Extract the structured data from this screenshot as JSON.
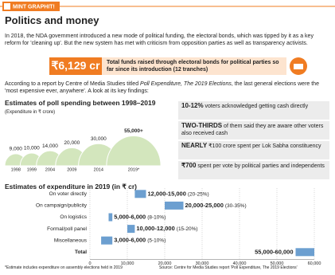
{
  "header": {
    "brand": "MINT GRAPHIT!"
  },
  "title": "Politics and money",
  "intro": "In 2018, the NDA government introduced a new mode of political funding, the electoral bonds, which was tipped by it as a key reform for 'cleaning up'. But the new system has met with criticism from opposition parties as well as transparency activists.",
  "highlight": {
    "value": "₹6,129 cr",
    "text": "Total funds raised through electoral bonds for political parties so far since its introduction (12 tranches)"
  },
  "lead": {
    "before": "According to a report by Centre of Media Studies titled ",
    "report": "Poll Expenditure, The 2019 Elections",
    "after": ", the last general elections were the 'most expensive ever, anywhere'. A look at its key findings:"
  },
  "findings": [
    {
      "bold": "10-12%",
      "text": " voters acknowledged getting cash directly"
    },
    {
      "bold": "TWO-THIRDS",
      "text": " of them said they are aware other voters also received cash"
    },
    {
      "bold": "NEARLY",
      "text": " ₹100 crore spent per Lok Sabha constituency"
    },
    {
      "bold": "₹700",
      "text": " spent per vote by political parties and independents"
    }
  ],
  "chart_data": [
    {
      "type": "dome",
      "title": "Estimates of poll spending between 1998–2019",
      "subtitle": "(Expenditure in ₹ crore)",
      "categories": [
        "1998",
        "1999",
        "2004",
        "2009",
        "2014",
        "2019*"
      ],
      "values": [
        9000,
        10000,
        14000,
        20000,
        30000,
        55000
      ],
      "value_labels": [
        "9,000",
        "10,000",
        "14,000",
        "20,000",
        "30,000",
        "55,000+"
      ],
      "color": "#d3e6bd"
    },
    {
      "type": "range",
      "title": "Estimates of expenditure in 2019 (in ₹ cr)",
      "categories": [
        "On voter directly",
        "On campaign/publicity",
        "On logistics",
        "Formal/poll panel",
        "Miscellaneous",
        "Total"
      ],
      "low": [
        12000,
        20000,
        5000,
        10000,
        3000,
        55000
      ],
      "high": [
        15000,
        25000,
        6000,
        12000,
        6000,
        60000
      ],
      "value_labels": [
        "12,000-15,000",
        "20,000-25,000",
        "5,000-6,000",
        "10,000-12,000",
        "3,000-6,000",
        "55,000-60,000"
      ],
      "shares": [
        "(20-25%)",
        "(30-35%)",
        "(8-10%)",
        "(15-20%)",
        "(5-10%)",
        null
      ],
      "color": "#6c9fd0",
      "xlim": [
        0,
        60000
      ],
      "xticks": [
        0,
        {
          "value": 10000,
          "label": "10,000"
        },
        {
          "value": 20000,
          "label": "20,000"
        },
        {
          "value": 30000,
          "label": "30,000"
        },
        {
          "value": 40000,
          "label": "40,000"
        },
        {
          "value": 50000,
          "label": "50,000"
        },
        {
          "value": 60000,
          "label": "60,000"
        }
      ],
      "grid": true
    }
  ],
  "footnote": "*Estimate includes expenditure on assembly elections held in 2019",
  "source": "Source: Centre for Media Studies report 'Poll Expenditure, The 2019 Elections'"
}
